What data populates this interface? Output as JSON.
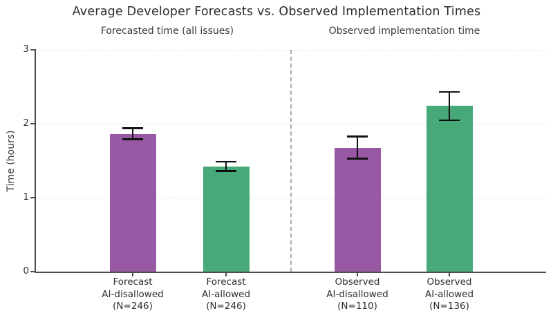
{
  "chart_data": {
    "type": "bar",
    "title": "Average Developer Forecasts vs. Observed Implementation Times",
    "panel_titles": [
      "Forecasted time (all issues)",
      "Observed implementation time"
    ],
    "ylabel": "Time (hours)",
    "ylim": [
      0,
      3
    ],
    "yticks": [
      0,
      1,
      2,
      3
    ],
    "grid": "dashed horizontal at 1, 2, 3",
    "legend_position": "none",
    "categories": [
      "Forecast AI-disallowed (N=246)",
      "Forecast AI-allowed (N=246)",
      "Observed AI-disallowed (N=110)",
      "Observed AI-allowed (N=136)"
    ],
    "values": [
      1.86,
      1.42,
      1.67,
      2.24
    ],
    "bars": [
      {
        "name": "forecast-ai-disallowed",
        "label_lines": [
          "Forecast",
          "AI-disallowed",
          "(N=246)"
        ],
        "value": 1.86,
        "err": [
          1.79,
          1.94
        ],
        "color": "#9958a3",
        "panel": "forecasted"
      },
      {
        "name": "forecast-ai-allowed",
        "label_lines": [
          "Forecast",
          "AI-allowed",
          "(N=246)"
        ],
        "value": 1.42,
        "err": [
          1.36,
          1.49
        ],
        "color": "#47a878",
        "panel": "forecasted"
      },
      {
        "name": "observed-ai-disallowed",
        "label_lines": [
          "Observed",
          "AI-disallowed",
          "(N=110)"
        ],
        "value": 1.67,
        "err": [
          1.53,
          1.83
        ],
        "color": "#9958a3",
        "panel": "observed"
      },
      {
        "name": "observed-ai-allowed",
        "label_lines": [
          "Observed",
          "AI-allowed",
          "(N=136)"
        ],
        "value": 2.24,
        "err": [
          2.05,
          2.43
        ],
        "color": "#47a878",
        "panel": "observed"
      }
    ],
    "colors": {
      "ai_disallowed": "#9958a3",
      "ai_allowed": "#47a878",
      "error_bar": "#111111",
      "axis": "#4d4d4d",
      "divider": "#ababab",
      "gridline": "#e4e4e4"
    }
  }
}
